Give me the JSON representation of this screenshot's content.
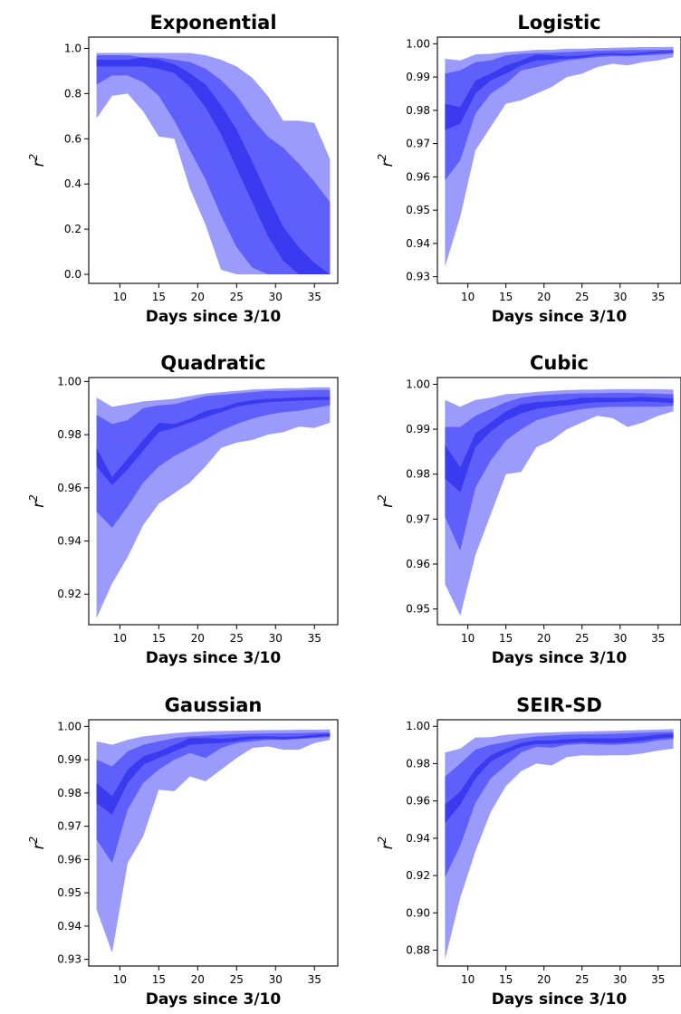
{
  "figure": {
    "colors": {
      "outer": "#9b9bfb",
      "mid": "#5f5ffb",
      "inner": "#3a3af0"
    }
  },
  "chart_data": [
    {
      "type": "area",
      "title": "Exponential",
      "xlabel": "Days since 3/10",
      "ylabel": "r",
      "ylabel_superscript": "2",
      "xlim": [
        6,
        38
      ],
      "ylim": [
        -0.04,
        1.05
      ],
      "xticks": [
        10,
        15,
        20,
        25,
        30,
        35
      ],
      "yticks": [
        0.0,
        0.2,
        0.4,
        0.6,
        0.8,
        1.0
      ],
      "ytick_labels": [
        "0.0",
        "0.2",
        "0.4",
        "0.6",
        "0.8",
        "1.0"
      ],
      "x": [
        7,
        9,
        11,
        13,
        15,
        17,
        19,
        21,
        23,
        25,
        27,
        29,
        31,
        33,
        35,
        37
      ],
      "bands": {
        "outer": {
          "upper": [
            0.98,
            0.98,
            0.98,
            0.98,
            0.98,
            0.98,
            0.98,
            0.97,
            0.95,
            0.92,
            0.87,
            0.79,
            0.68,
            0.68,
            0.67,
            0.51
          ],
          "lower": [
            0.69,
            0.79,
            0.8,
            0.72,
            0.61,
            0.6,
            0.38,
            0.22,
            0.02,
            0.0,
            0.0,
            0.0,
            0.0,
            0.0,
            0.0,
            0.0
          ]
        },
        "mid": {
          "upper": [
            0.97,
            0.97,
            0.97,
            0.96,
            0.96,
            0.95,
            0.94,
            0.91,
            0.86,
            0.79,
            0.69,
            0.61,
            0.56,
            0.49,
            0.41,
            0.32
          ],
          "lower": [
            0.84,
            0.88,
            0.88,
            0.85,
            0.79,
            0.68,
            0.55,
            0.42,
            0.26,
            0.12,
            0.03,
            0.0,
            0.0,
            0.0,
            0.0,
            0.0
          ]
        },
        "inner": {
          "upper": [
            0.95,
            0.95,
            0.95,
            0.96,
            0.95,
            0.93,
            0.89,
            0.84,
            0.75,
            0.64,
            0.5,
            0.35,
            0.21,
            0.12,
            0.05,
            0.0
          ],
          "lower": [
            0.92,
            0.92,
            0.92,
            0.92,
            0.91,
            0.89,
            0.83,
            0.74,
            0.62,
            0.47,
            0.32,
            0.17,
            0.06,
            0.0,
            0.0,
            0.0
          ]
        }
      }
    },
    {
      "type": "area",
      "title": "Logistic",
      "xlabel": "Days since 3/10",
      "ylabel": "r",
      "ylabel_superscript": "2",
      "xlim": [
        6,
        38
      ],
      "ylim": [
        0.928,
        1.002
      ],
      "xticks": [
        10,
        15,
        20,
        25,
        30,
        35
      ],
      "yticks": [
        0.93,
        0.94,
        0.95,
        0.96,
        0.97,
        0.98,
        0.99,
        1.0
      ],
      "ytick_labels": [
        "0.93",
        "0.94",
        "0.95",
        "0.96",
        "0.97",
        "0.98",
        "0.99",
        "1.00"
      ],
      "x": [
        7,
        9,
        11,
        13,
        15,
        17,
        19,
        21,
        23,
        25,
        27,
        29,
        31,
        33,
        35,
        37
      ],
      "bands": {
        "outer": {
          "upper": [
            0.9955,
            0.995,
            0.9968,
            0.997,
            0.9975,
            0.9978,
            0.9982,
            0.9982,
            0.9985,
            0.9985,
            0.9987,
            0.9988,
            0.9989,
            0.999,
            0.999,
            0.9991
          ],
          "lower": [
            0.933,
            0.948,
            0.968,
            0.975,
            0.982,
            0.983,
            0.985,
            0.987,
            0.99,
            0.991,
            0.993,
            0.994,
            0.9935,
            0.9945,
            0.995,
            0.996
          ]
        },
        "mid": {
          "upper": [
            0.991,
            0.992,
            0.9945,
            0.995,
            0.9965,
            0.997,
            0.9972,
            0.9973,
            0.9975,
            0.9977,
            0.9979,
            0.998,
            0.9981,
            0.9981,
            0.9982,
            0.9982
          ],
          "lower": [
            0.959,
            0.965,
            0.979,
            0.985,
            0.988,
            0.992,
            0.993,
            0.994,
            0.995,
            0.9955,
            0.996,
            0.9963,
            0.9962,
            0.9965,
            0.9967,
            0.997
          ]
        },
        "inner": {
          "upper": [
            0.982,
            0.981,
            0.989,
            0.991,
            0.9935,
            0.995,
            0.9968,
            0.9965,
            0.9962,
            0.9965,
            0.997,
            0.9972,
            0.997,
            0.9973,
            0.9977,
            0.9978
          ],
          "lower": [
            0.974,
            0.976,
            0.985,
            0.989,
            0.991,
            0.9935,
            0.995,
            0.9952,
            0.9955,
            0.9958,
            0.9965,
            0.9967,
            0.9965,
            0.9968,
            0.9972,
            0.9974
          ]
        }
      }
    },
    {
      "type": "area",
      "title": "Quadratic",
      "xlabel": "Days since 3/10",
      "ylabel": "r",
      "ylabel_superscript": "2",
      "xlim": [
        6,
        38
      ],
      "ylim": [
        0.9085,
        1.0015
      ],
      "xticks": [
        10,
        15,
        20,
        25,
        30,
        35
      ],
      "yticks": [
        0.92,
        0.94,
        0.96,
        0.98,
        1.0
      ],
      "ytick_labels": [
        "0.92",
        "0.94",
        "0.96",
        "0.98",
        "1.00"
      ],
      "x": [
        7,
        9,
        11,
        13,
        15,
        17,
        19,
        21,
        23,
        25,
        27,
        29,
        31,
        33,
        35,
        37
      ],
      "bands": {
        "outer": {
          "upper": [
            0.994,
            0.9905,
            0.9915,
            0.9925,
            0.993,
            0.9935,
            0.9945,
            0.9955,
            0.996,
            0.9965,
            0.997,
            0.9972,
            0.9975,
            0.9975,
            0.9978,
            0.9978
          ],
          "lower": [
            0.911,
            0.924,
            0.934,
            0.946,
            0.954,
            0.958,
            0.962,
            0.968,
            0.975,
            0.977,
            0.978,
            0.98,
            0.981,
            0.983,
            0.9825,
            0.9845
          ]
        },
        "mid": {
          "upper": [
            0.9875,
            0.984,
            0.9855,
            0.99,
            0.991,
            0.9915,
            0.993,
            0.9945,
            0.995,
            0.9955,
            0.996,
            0.9965,
            0.9965,
            0.9967,
            0.9968,
            0.9968
          ],
          "lower": [
            0.951,
            0.945,
            0.953,
            0.962,
            0.968,
            0.972,
            0.975,
            0.978,
            0.9815,
            0.984,
            0.986,
            0.9875,
            0.9885,
            0.989,
            0.99,
            0.991
          ]
        },
        "inner": {
          "upper": [
            0.975,
            0.964,
            0.971,
            0.978,
            0.9845,
            0.984,
            0.986,
            0.989,
            0.99,
            0.992,
            0.993,
            0.9935,
            0.9938,
            0.994,
            0.9942,
            0.9942
          ],
          "lower": [
            0.968,
            0.961,
            0.967,
            0.974,
            0.981,
            0.9825,
            0.9845,
            0.9865,
            0.9885,
            0.9905,
            0.9915,
            0.9922,
            0.9925,
            0.9928,
            0.993,
            0.9932
          ]
        }
      }
    },
    {
      "type": "area",
      "title": "Cubic",
      "xlabel": "Days since 3/10",
      "ylabel": "r",
      "ylabel_superscript": "2",
      "xlim": [
        6,
        38
      ],
      "ylim": [
        0.9465,
        1.0015
      ],
      "xticks": [
        10,
        15,
        20,
        25,
        30,
        35
      ],
      "yticks": [
        0.95,
        0.96,
        0.97,
        0.98,
        0.99,
        1.0
      ],
      "ytick_labels": [
        "0.95",
        "0.96",
        "0.97",
        "0.98",
        "0.99",
        "1.00"
      ],
      "x": [
        7,
        9,
        11,
        13,
        15,
        17,
        19,
        21,
        23,
        25,
        27,
        29,
        31,
        33,
        35,
        37
      ],
      "bands": {
        "outer": {
          "upper": [
            0.9965,
            0.995,
            0.9965,
            0.997,
            0.9978,
            0.998,
            0.9983,
            0.9985,
            0.9987,
            0.9988,
            0.9988,
            0.9989,
            0.9989,
            0.9989,
            0.9989,
            0.9988
          ],
          "lower": [
            0.9555,
            0.9485,
            0.962,
            0.971,
            0.98,
            0.9805,
            0.986,
            0.9875,
            0.99,
            0.9915,
            0.993,
            0.9925,
            0.9905,
            0.9915,
            0.993,
            0.994
          ]
        },
        "mid": {
          "upper": [
            0.9905,
            0.9905,
            0.993,
            0.9945,
            0.996,
            0.997,
            0.9975,
            0.9977,
            0.9979,
            0.998,
            0.998,
            0.9981,
            0.9981,
            0.998,
            0.9979,
            0.9978
          ],
          "lower": [
            0.9705,
            0.963,
            0.977,
            0.983,
            0.9875,
            0.99,
            0.992,
            0.993,
            0.9938,
            0.9945,
            0.9948,
            0.995,
            0.995,
            0.995,
            0.995,
            0.9952
          ]
        },
        "inner": {
          "upper": [
            0.9865,
            0.9815,
            0.989,
            0.9915,
            0.994,
            0.9955,
            0.996,
            0.9962,
            0.9965,
            0.997,
            0.997,
            0.997,
            0.997,
            0.9972,
            0.997,
            0.9968
          ],
          "lower": [
            0.979,
            0.976,
            0.986,
            0.9895,
            0.992,
            0.9935,
            0.9945,
            0.995,
            0.9953,
            0.9957,
            0.996,
            0.996,
            0.9961,
            0.9962,
            0.996,
            0.9958
          ]
        }
      }
    },
    {
      "type": "area",
      "title": "Gaussian",
      "xlabel": "Days since 3/10",
      "ylabel": "r",
      "ylabel_superscript": "2",
      "xlim": [
        6,
        38
      ],
      "ylim": [
        0.928,
        1.002
      ],
      "xticks": [
        10,
        15,
        20,
        25,
        30,
        35
      ],
      "yticks": [
        0.93,
        0.94,
        0.95,
        0.96,
        0.97,
        0.98,
        0.99,
        1.0
      ],
      "ytick_labels": [
        "0.93",
        "0.94",
        "0.95",
        "0.96",
        "0.97",
        "0.98",
        "0.99",
        "1.00"
      ],
      "x": [
        7,
        9,
        11,
        13,
        15,
        17,
        19,
        21,
        23,
        25,
        27,
        29,
        31,
        33,
        35,
        37
      ],
      "bands": {
        "outer": {
          "upper": [
            0.9955,
            0.9945,
            0.996,
            0.997,
            0.9975,
            0.998,
            0.9983,
            0.9985,
            0.9986,
            0.9987,
            0.9988,
            0.9989,
            0.9989,
            0.999,
            0.999,
            0.9991
          ],
          "lower": [
            0.945,
            0.932,
            0.959,
            0.967,
            0.981,
            0.9805,
            0.985,
            0.9835,
            0.987,
            0.9905,
            0.9935,
            0.994,
            0.993,
            0.993,
            0.995,
            0.996
          ]
        },
        "mid": {
          "upper": [
            0.99,
            0.988,
            0.9925,
            0.9945,
            0.9955,
            0.9965,
            0.997,
            0.9972,
            0.9975,
            0.9977,
            0.9978,
            0.9979,
            0.998,
            0.998,
            0.9981,
            0.9982
          ],
          "lower": [
            0.966,
            0.959,
            0.975,
            0.983,
            0.987,
            0.99,
            0.992,
            0.9905,
            0.9935,
            0.995,
            0.9955,
            0.996,
            0.996,
            0.9962,
            0.9965,
            0.9968
          ]
        },
        "inner": {
          "upper": [
            0.983,
            0.979,
            0.987,
            0.991,
            0.9925,
            0.9945,
            0.9965,
            0.9965,
            0.9963,
            0.9966,
            0.997,
            0.997,
            0.9968,
            0.997,
            0.9975,
            0.9978
          ],
          "lower": [
            0.977,
            0.9735,
            0.983,
            0.9885,
            0.9905,
            0.9925,
            0.9945,
            0.9948,
            0.995,
            0.9955,
            0.9962,
            0.9963,
            0.9961,
            0.9964,
            0.9968,
            0.9971
          ]
        }
      }
    },
    {
      "type": "area",
      "title": "SEIR-SD",
      "xlabel": "Days since 3/10",
      "ylabel": "r",
      "ylabel_superscript": "2",
      "xlim": [
        6,
        38
      ],
      "ylim": [
        0.8715,
        1.0035
      ],
      "xticks": [
        10,
        15,
        20,
        25,
        30,
        35
      ],
      "yticks": [
        0.88,
        0.9,
        0.92,
        0.94,
        0.96,
        0.98,
        1.0
      ],
      "ytick_labels": [
        "0.88",
        "0.90",
        "0.92",
        "0.94",
        "0.96",
        "0.98",
        "1.00"
      ],
      "x": [
        7,
        9,
        11,
        13,
        15,
        17,
        19,
        21,
        23,
        25,
        27,
        29,
        31,
        33,
        35,
        37
      ],
      "bands": {
        "outer": {
          "upper": [
            0.986,
            0.988,
            0.994,
            0.9942,
            0.9955,
            0.996,
            0.9965,
            0.9967,
            0.997,
            0.9972,
            0.9974,
            0.9976,
            0.9978,
            0.998,
            0.9982,
            0.9985
          ],
          "lower": [
            0.875,
            0.908,
            0.933,
            0.954,
            0.968,
            0.976,
            0.98,
            0.979,
            0.9835,
            0.9845,
            0.9843,
            0.9845,
            0.9845,
            0.9855,
            0.987,
            0.988
          ]
        },
        "mid": {
          "upper": [
            0.973,
            0.98,
            0.9875,
            0.99,
            0.9915,
            0.9935,
            0.9945,
            0.995,
            0.9955,
            0.9957,
            0.9958,
            0.996,
            0.9962,
            0.9965,
            0.9968,
            0.997
          ],
          "lower": [
            0.919,
            0.936,
            0.959,
            0.972,
            0.979,
            0.986,
            0.989,
            0.9885,
            0.99,
            0.9905,
            0.9903,
            0.99,
            0.9905,
            0.991,
            0.9925,
            0.9932
          ]
        },
        "inner": {
          "upper": [
            0.958,
            0.965,
            0.977,
            0.9845,
            0.988,
            0.991,
            0.9925,
            0.9925,
            0.993,
            0.9935,
            0.9935,
            0.9935,
            0.9938,
            0.9945,
            0.9955,
            0.996
          ],
          "lower": [
            0.948,
            0.958,
            0.972,
            0.981,
            0.9855,
            0.989,
            0.9905,
            0.9905,
            0.991,
            0.9915,
            0.9912,
            0.991,
            0.9915,
            0.9925,
            0.9935,
            0.9942
          ]
        }
      }
    }
  ]
}
